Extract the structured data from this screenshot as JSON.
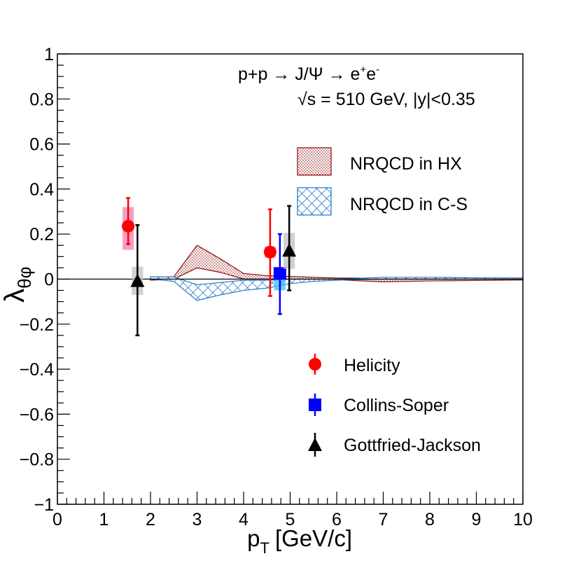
{
  "chart_data": {
    "type": "scatter",
    "xlabel": "p",
    "xlabel_sub": "T",
    "xlabel_units": "[GeV/c]",
    "ylabel": "λ",
    "ylabel_sub": "θφ",
    "xlim": [
      0,
      10
    ],
    "ylim": [
      -1,
      1
    ],
    "x_ticks": [
      0,
      1,
      2,
      3,
      4,
      5,
      6,
      7,
      8,
      9,
      10
    ],
    "y_ticks": [
      -1,
      -0.8,
      -0.6,
      -0.4,
      -0.2,
      0,
      0.2,
      0.4,
      0.6,
      0.8,
      1
    ],
    "y_tick_labels": [
      "−1",
      "−0.8",
      "−0.6",
      "−0.4",
      "−0.2",
      "0",
      "0.2",
      "0.4",
      "0.6",
      "0.8",
      "1"
    ],
    "annotation_line1": "p+p → J/Ψ → e",
    "annotation_line1_sup1": "+",
    "annotation_line1_mid": "e",
    "annotation_line1_sup2": "-",
    "annotation_line2": "√s = 510 GeV, |y|<0.35",
    "legend_bands": [
      {
        "label": "NRQCD in HX",
        "color": "#8b0000",
        "pattern": "dots"
      },
      {
        "label": "NRQCD in C-S",
        "color": "#1e73c8",
        "pattern": "crosshatch"
      }
    ],
    "legend_points": [
      {
        "label": "Helicity",
        "color": "#ff0000",
        "marker": "circle"
      },
      {
        "label": "Collins-Soper",
        "color": "#0000ff",
        "marker": "square"
      },
      {
        "label": "Gottfried-Jackson",
        "color": "#000000",
        "marker": "triangle"
      }
    ],
    "series": [
      {
        "name": "Helicity",
        "color": "#ff0000",
        "syst_color": "#f080b0",
        "marker": "circle",
        "points": [
          {
            "x": 1.52,
            "y": 0.235,
            "stat_lo": 0.155,
            "stat_hi": 0.36,
            "syst_lo": 0.13,
            "syst_hi": 0.32
          },
          {
            "x": 4.57,
            "y": 0.12,
            "stat_lo": -0.075,
            "stat_hi": 0.31,
            "syst_lo": 0.095,
            "syst_hi": 0.145
          }
        ]
      },
      {
        "name": "Collins-Soper",
        "color": "#0000ff",
        "syst_color": "#40c0f0",
        "marker": "square",
        "points": [
          {
            "x": 4.78,
            "y": 0.025,
            "stat_lo": -0.155,
            "stat_hi": 0.2,
            "syst_lo": -0.05,
            "syst_hi": 0.04
          }
        ]
      },
      {
        "name": "Gottfried-Jackson",
        "color": "#000000",
        "syst_color": "#c0c0c0",
        "marker": "triangle",
        "points": [
          {
            "x": 1.72,
            "y": -0.01,
            "stat_lo": -0.25,
            "stat_hi": 0.24,
            "syst_lo": -0.07,
            "syst_hi": 0.055
          },
          {
            "x": 4.98,
            "y": 0.125,
            "stat_lo": -0.05,
            "stat_hi": 0.325,
            "syst_lo": 0.045,
            "syst_hi": 0.205
          }
        ]
      }
    ],
    "bands": [
      {
        "name": "NRQCD in HX",
        "color": "#8b0000",
        "x": [
          2.0,
          2.5,
          3.0,
          3.5,
          4.0,
          4.5,
          5.0,
          5.5,
          6.0,
          7.0,
          8.0,
          9.0,
          10.0
        ],
        "upper": [
          0.005,
          0.01,
          0.15,
          0.09,
          0.025,
          0.015,
          0.012,
          0.008,
          0.005,
          0.004,
          0.004,
          0.003,
          0.003
        ],
        "lower": [
          -0.005,
          0.0,
          0.05,
          0.03,
          0.0,
          0.0,
          -0.002,
          -0.002,
          -0.003,
          -0.012,
          -0.008,
          -0.006,
          -0.004
        ]
      },
      {
        "name": "NRQCD in C-S",
        "color": "#1e73c8",
        "x": [
          2.0,
          2.5,
          3.0,
          3.5,
          4.0,
          4.5,
          5.0,
          5.5,
          6.0,
          7.0,
          8.0,
          9.0,
          10.0
        ],
        "upper": [
          0.01,
          0.01,
          -0.025,
          -0.015,
          -0.005,
          -0.005,
          0.0,
          0.0,
          0.0,
          0.008,
          0.008,
          0.006,
          0.005
        ],
        "lower": [
          0.0,
          -0.01,
          -0.095,
          -0.07,
          -0.05,
          -0.04,
          -0.02,
          -0.01,
          -0.005,
          0.0,
          0.0,
          0.0,
          0.0
        ]
      }
    ]
  }
}
